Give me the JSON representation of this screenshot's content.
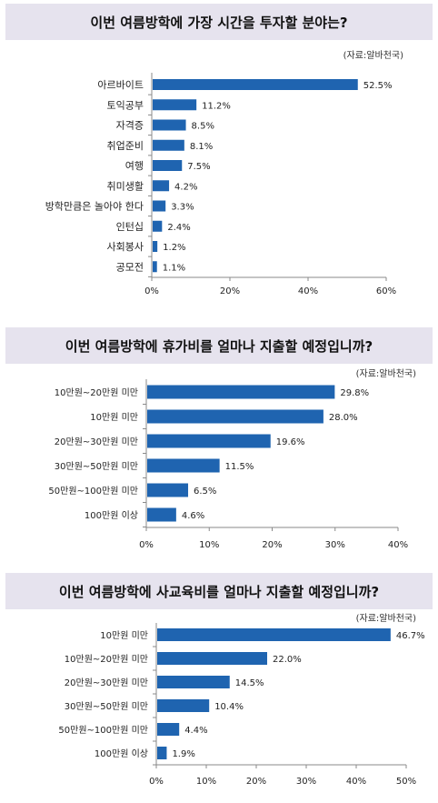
{
  "colors": {
    "bar": "#1f64b0",
    "title_bg": "#e6e3ee",
    "grid": "#8a8a8a"
  },
  "chart_data": [
    {
      "type": "bar",
      "orientation": "horizontal",
      "title": "이번 여름방학에 가장 시간을 투자할 분야는?",
      "source": "(자료:알바천국)",
      "categories": [
        "아르바이트",
        "토익공부",
        "자격증",
        "취업준비",
        "여행",
        "취미생활",
        "방학만큼은 놀아야 한다",
        "인턴십",
        "사회봉사",
        "공모전"
      ],
      "values": [
        52.5,
        11.2,
        8.5,
        8.1,
        7.5,
        4.2,
        3.3,
        2.4,
        1.2,
        1.1
      ],
      "value_labels": [
        "52.5%",
        "11.2%",
        "8.5%",
        "8.1%",
        "7.5%",
        "4.2%",
        "3.3%",
        "2.4%",
        "1.2%",
        "1.1%"
      ],
      "xlim": [
        0,
        60
      ],
      "ticks": [
        0,
        20,
        40,
        60
      ],
      "tick_labels": [
        "0%",
        "20%",
        "40%",
        "60%"
      ],
      "grid": false,
      "legend": "none"
    },
    {
      "type": "bar",
      "orientation": "horizontal",
      "title": "이번 여름방학에 휴가비를 얼마나 지출할 예정입니까?",
      "source": "(자료:알바천국)",
      "categories": [
        "10만원~20만원 미만",
        "10만원 미만",
        "20만원~30만원 미만",
        "30만원~50만원 미만",
        "50만원~100만원 미만",
        "100만원 이상"
      ],
      "values": [
        29.8,
        28.0,
        19.6,
        11.5,
        6.5,
        4.6
      ],
      "value_labels": [
        "29.8%",
        "28.0%",
        "19.6%",
        "11.5%",
        "6.5%",
        "4.6%"
      ],
      "xlim": [
        0,
        40
      ],
      "ticks": [
        0,
        10,
        20,
        30,
        40
      ],
      "tick_labels": [
        "0%",
        "10%",
        "20%",
        "30%",
        "40%"
      ],
      "grid": false,
      "legend": "none"
    },
    {
      "type": "bar",
      "orientation": "horizontal",
      "title": "이번 여름방학에 사교육비를 얼마나 지출할 예정입니까?",
      "source": "(자료:알바천국)",
      "categories": [
        "10만원 미만",
        "10만원~20만원 미만",
        "20만원~30만원 미만",
        "30만원~50만원 미만",
        "50만원~100만원 미만",
        "100만원 이상"
      ],
      "values": [
        46.7,
        22.0,
        14.5,
        10.4,
        4.4,
        1.9
      ],
      "value_labels": [
        "46.7%",
        "22.0%",
        "14.5%",
        "10.4%",
        "4.4%",
        "1.9%"
      ],
      "xlim": [
        0,
        50
      ],
      "ticks": [
        0,
        10,
        20,
        30,
        40,
        50
      ],
      "tick_labels": [
        "0%",
        "10%",
        "20%",
        "30%",
        "40%",
        "50%"
      ],
      "grid": false,
      "legend": "none"
    }
  ]
}
